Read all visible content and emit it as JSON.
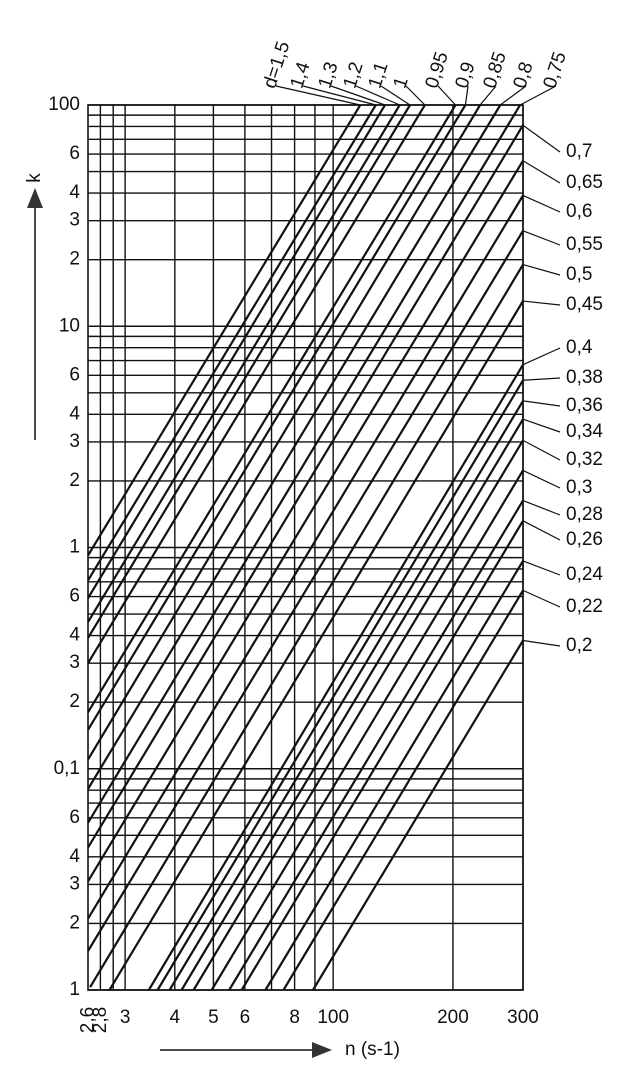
{
  "chart_data": {
    "type": "line",
    "xlabel": "n (s-1)",
    "ylabel": "k",
    "log_x": true,
    "log_y": true,
    "grid": true,
    "xlim": [
      24.2,
      300
    ],
    "ylim": [
      0.01,
      100
    ],
    "xticks": [
      {
        "value": 26,
        "label": "2,6"
      },
      {
        "value": 28,
        "label": "2,8"
      },
      {
        "value": 30,
        "label": "3"
      },
      {
        "value": 40,
        "label": "4"
      },
      {
        "value": 50,
        "label": "5"
      },
      {
        "value": 60,
        "label": "6"
      },
      {
        "value": 80,
        "label": "8"
      },
      100,
      200,
      300
    ],
    "xminor": [
      70,
      90
    ],
    "yticks": [
      100,
      {
        "value": 60,
        "label": "6"
      },
      {
        "value": 40,
        "label": "4"
      },
      {
        "value": 30,
        "label": "3"
      },
      {
        "value": 20,
        "label": "2"
      },
      10,
      6,
      4,
      3,
      2,
      1,
      {
        "value": 0.6,
        "label": "6"
      },
      {
        "value": 0.4,
        "label": "4"
      },
      {
        "value": 0.3,
        "label": "3"
      },
      {
        "value": 0.2,
        "label": "2"
      },
      {
        "value": 0.1,
        "label": "0,1"
      },
      {
        "value": 0.06,
        "label": "6"
      },
      {
        "value": 0.04,
        "label": "4"
      },
      {
        "value": 0.03,
        "label": "3"
      },
      {
        "value": 0.02,
        "label": "2"
      },
      {
        "value": 0.01,
        "label": "1"
      }
    ],
    "yminor": [
      90,
      80,
      70,
      50,
      9,
      8,
      7,
      5,
      0.9,
      0.8,
      0.7,
      0.5,
      0.09,
      0.08,
      0.07,
      0.05
    ],
    "series": [
      {
        "name": "d=1,5",
        "x": [
          24.2,
          117
        ],
        "values": [
          0.92,
          100
        ]
      },
      {
        "name": "1,4",
        "x": [
          24.2,
          128
        ],
        "values": [
          0.71,
          100
        ]
      },
      {
        "name": "1,3",
        "x": [
          24.2,
          135
        ],
        "values": [
          0.59,
          100
        ]
      },
      {
        "name": "1,2",
        "x": [
          24.2,
          147
        ],
        "values": [
          0.46,
          100
        ]
      },
      {
        "name": "1,1",
        "x": [
          24.2,
          156
        ],
        "values": [
          0.39,
          100
        ]
      },
      {
        "name": "1",
        "x": [
          24.2,
          170
        ],
        "values": [
          0.3,
          100
        ]
      },
      {
        "name": "0,95",
        "x": [
          24.2,
          203
        ],
        "values": [
          0.18,
          100
        ]
      },
      {
        "name": "0,9",
        "x": [
          24.2,
          215
        ],
        "values": [
          0.15,
          100
        ]
      },
      {
        "name": "0,85",
        "x": [
          24.2,
          234
        ],
        "values": [
          0.11,
          100
        ]
      },
      {
        "name": "0,8",
        "x": [
          24.2,
          263
        ],
        "values": [
          0.081,
          100
        ]
      },
      {
        "name": "0,75",
        "x": [
          24.2,
          295
        ],
        "values": [
          0.057,
          100
        ]
      },
      {
        "name": "0,7",
        "x": [
          24.2,
          300
        ],
        "values": [
          0.044,
          81
        ]
      },
      {
        "name": "0,65",
        "x": [
          24.2,
          300
        ],
        "values": [
          0.031,
          56
        ]
      },
      {
        "name": "0,6",
        "x": [
          24.2,
          300
        ],
        "values": [
          0.021,
          39
        ]
      },
      {
        "name": "0,55",
        "x": [
          24.2,
          300
        ],
        "values": [
          0.015,
          27
        ]
      },
      {
        "name": "0,5",
        "x": [
          24.5,
          300
        ],
        "values": [
          0.0103,
          19
        ]
      },
      {
        "name": "0,45",
        "x": [
          27.4,
          300
        ],
        "values": [
          0.01,
          13
        ]
      },
      {
        "name": "0,4",
        "x": [
          34.4,
          300
        ],
        "values": [
          0.01,
          6.7
        ]
      },
      {
        "name": "0,38",
        "x": [
          36.2,
          300
        ],
        "values": [
          0.01,
          5.7
        ]
      },
      {
        "name": "0,36",
        "x": [
          38.8,
          300
        ],
        "values": [
          0.01,
          4.6
        ]
      },
      {
        "name": "0,34",
        "x": [
          41.6,
          300
        ],
        "values": [
          0.01,
          3.8
        ]
      },
      {
        "name": "0,32",
        "x": [
          44.6,
          300
        ],
        "values": [
          0.01,
          3.05
        ]
      },
      {
        "name": "0,3",
        "x": [
          49.5,
          300
        ],
        "values": [
          0.01,
          2.23
        ]
      },
      {
        "name": "0,28",
        "x": [
          54.8,
          300
        ],
        "values": [
          0.01,
          1.63
        ]
      },
      {
        "name": "0,26",
        "x": [
          58.9,
          300
        ],
        "values": [
          0.01,
          1.32
        ]
      },
      {
        "name": "0,24",
        "x": [
          67.6,
          300
        ],
        "values": [
          0.01,
          0.87
        ]
      },
      {
        "name": "0,22",
        "x": [
          75,
          300
        ],
        "values": [
          0.01,
          0.64
        ]
      },
      {
        "name": "0,2",
        "x": [
          89,
          300
        ],
        "values": [
          0.01,
          0.38
        ]
      }
    ]
  }
}
